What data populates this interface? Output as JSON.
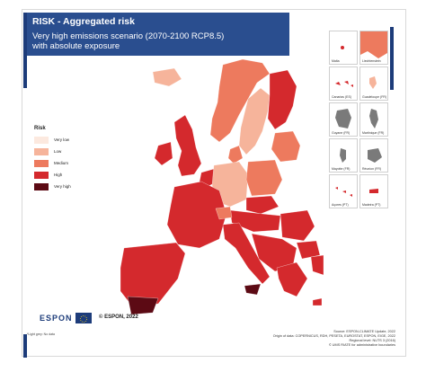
{
  "header": {
    "title": "RISK - Aggregated risk",
    "subtitle_line1": "Very high emissions scenario (2070-2100 RCP8.5)",
    "subtitle_line2": "with absolute exposure"
  },
  "legend": {
    "title": "Risk",
    "items": [
      {
        "label": "Very low",
        "color": "#fce9df"
      },
      {
        "label": "Low",
        "color": "#f6b49b"
      },
      {
        "label": "Medium",
        "color": "#ed7a5e"
      },
      {
        "label": "High",
        "color": "#d4292d"
      },
      {
        "label": "Very high",
        "color": "#5c0a14"
      }
    ]
  },
  "insets": [
    {
      "label": "Malta"
    },
    {
      "label": "Liechtenstein"
    },
    {
      "label": "Canarias (ES)"
    },
    {
      "label": "Guadeloupe (FR)"
    },
    {
      "label": "Guyane (FR)"
    },
    {
      "label": "Martinique (FR)"
    },
    {
      "label": "Mayotte (FR)"
    },
    {
      "label": "Réunion (FR)"
    },
    {
      "label": "Açores (PT)"
    },
    {
      "label": "Madeira (PT)"
    }
  ],
  "footer": {
    "logo": "ESPON",
    "copyright": "© ESPON, 2022",
    "footnote": "*Light grey: No data",
    "source": "Source: ESPON-CLIMATE Update, 2022",
    "origin": "Origin of data: COPERNICUS, RDH, PESETA, EUROSTAT, ESPON, EIGE, 2022",
    "regional_level": "Regional level: NUTS 3 (2016)",
    "boundaries": "© UMS RIATE for administrative boundaries"
  },
  "colors": {
    "brand_blue": "#2a4e8f",
    "very_low": "#fce9df",
    "low": "#f6b49b",
    "medium": "#ed7a5e",
    "high": "#d4292d",
    "very_high": "#5c0a14",
    "no_data": "#d9d9d9"
  }
}
